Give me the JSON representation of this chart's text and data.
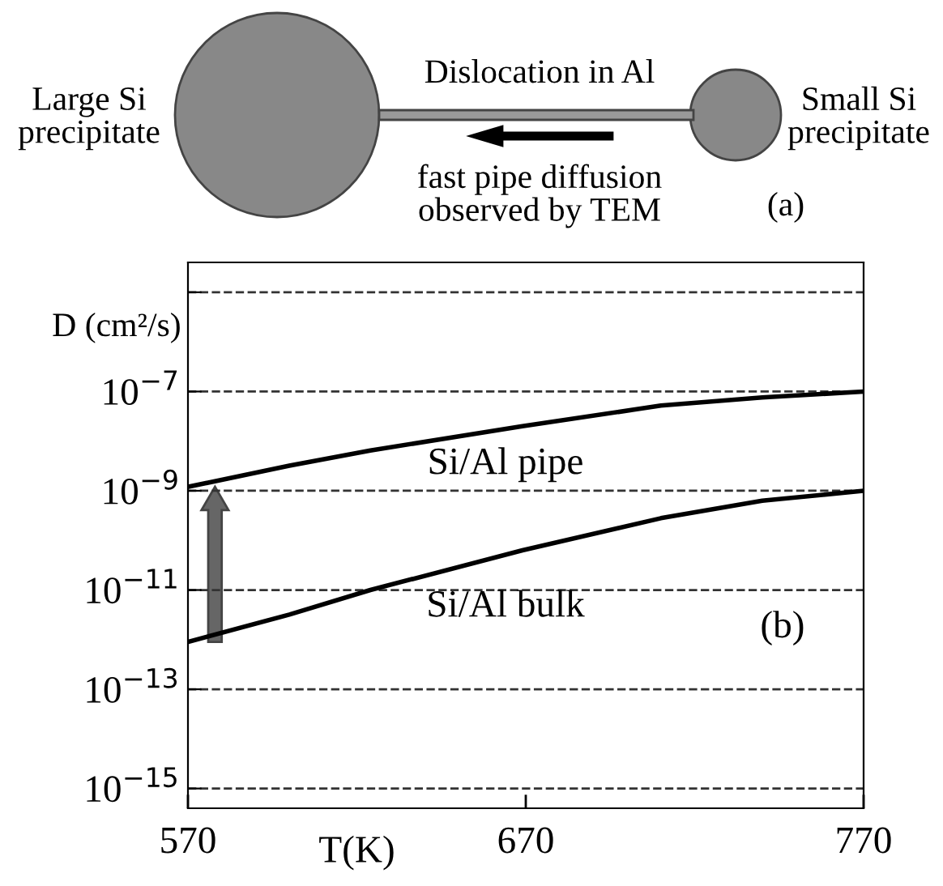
{
  "chart_data": {
    "type": "line",
    "xlabel": "T(K)",
    "ylabel": "D (cm²/s)",
    "x": [
      570,
      600,
      624,
      669,
      710,
      740,
      770
    ],
    "series": [
      {
        "name": "Si/Al pipe",
        "color": "#000000",
        "values": [
          1.2e-09,
          3.2e-09,
          6.5e-09,
          2e-08,
          5.2e-08,
          7.6e-08,
          1e-07
        ]
      },
      {
        "name": "Si/Al bulk",
        "color": "#000000",
        "values": [
          9e-13,
          3.2e-12,
          1e-11,
          6.3e-11,
          2.8e-10,
          6.3e-10,
          1e-09
        ]
      }
    ],
    "log": "y",
    "xlim": [
      570,
      770
    ],
    "xticks": [
      570,
      670,
      770
    ],
    "ylim": [
      4e-16,
      4e-05
    ],
    "yticks": [
      {
        "value": 1e-15,
        "label": "10$^{−15}$"
      },
      {
        "value": 1e-13,
        "label": "10$^{−13}$"
      },
      {
        "value": 1e-11,
        "label": "10$^{−11}$"
      },
      {
        "value": 1e-09,
        "label": "10$^{−9}$"
      },
      {
        "value": 1e-07,
        "label": "10$^{−7}$"
      },
      {
        "value": 1e-05,
        "label": null
      }
    ],
    "grid": "y",
    "legend": false,
    "marker": "none",
    "line_style": "solid",
    "annotations": [
      "Large Si\nprecipitate",
      "Dislocation in Al",
      "Small Si\nprecipitate",
      "fast pipe diffusion\nobserved by TEM",
      "(a)",
      "(b)"
    ]
  }
}
